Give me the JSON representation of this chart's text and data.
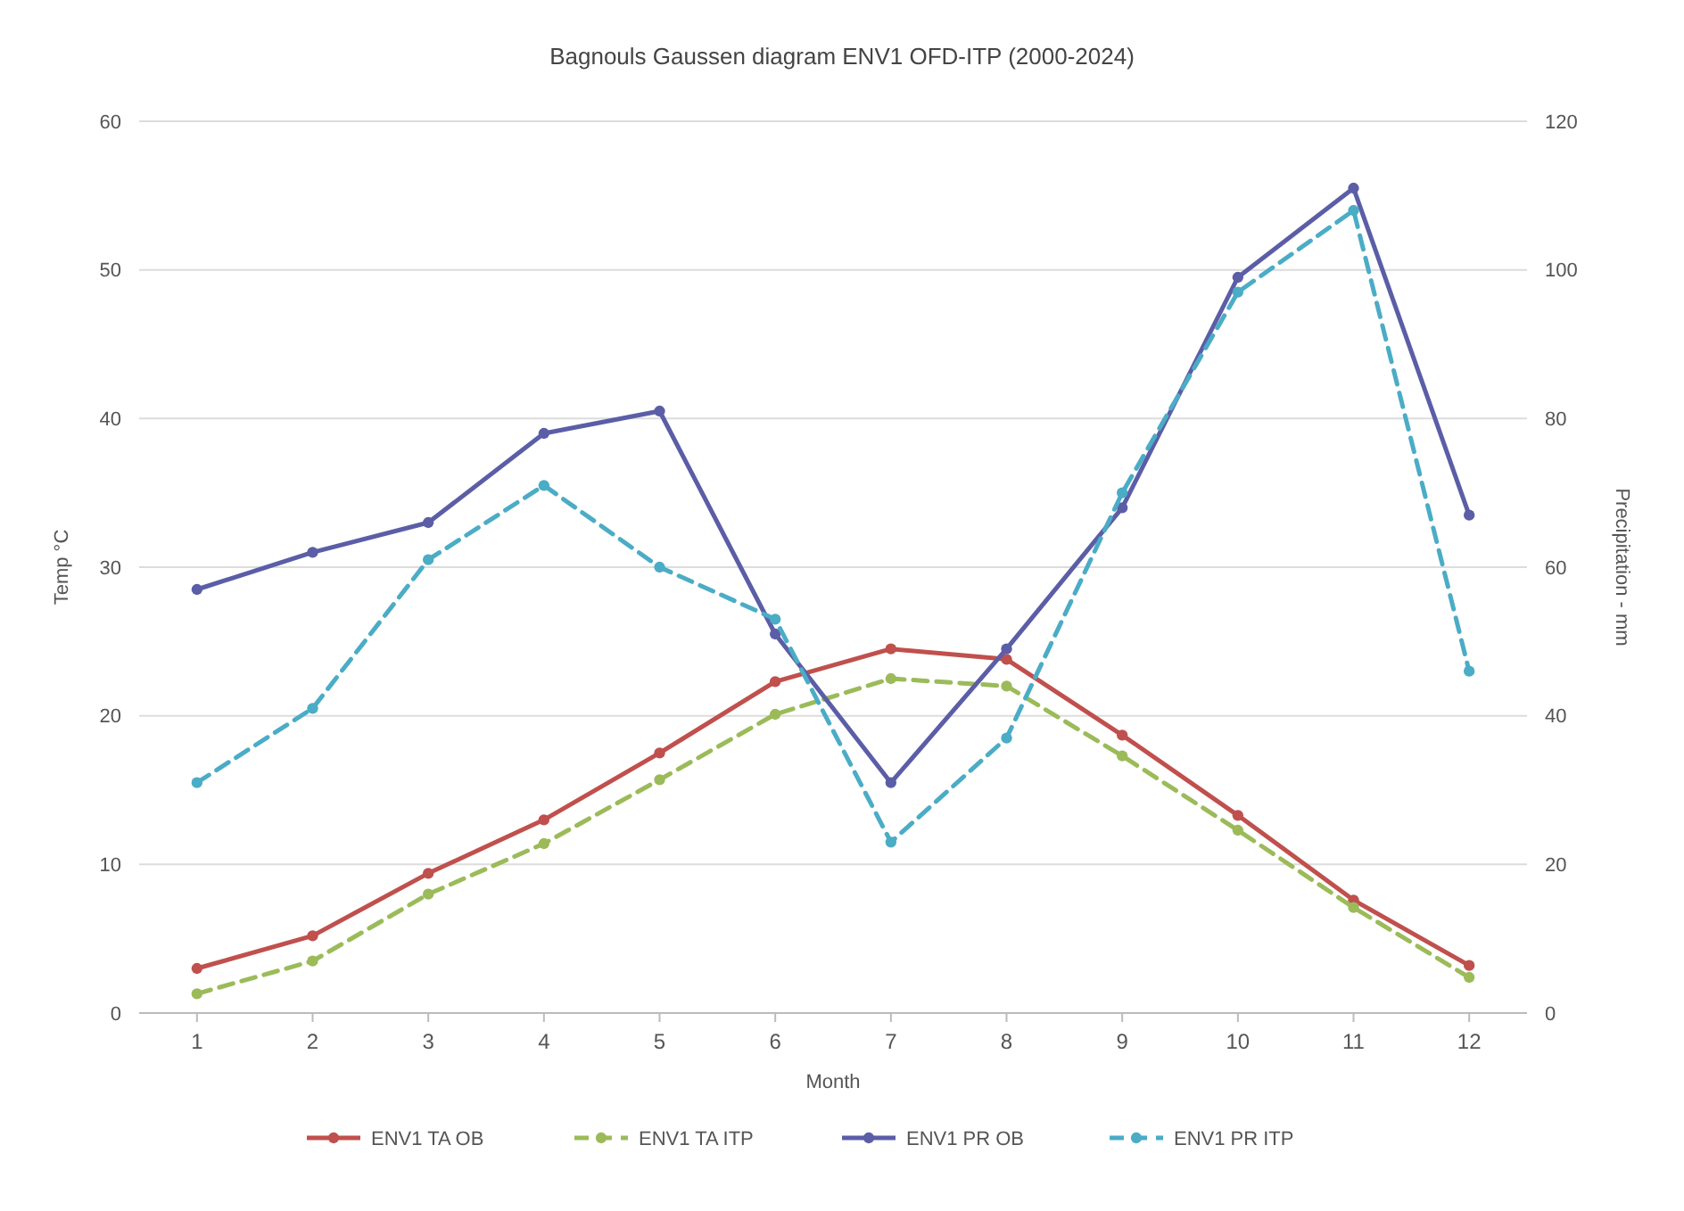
{
  "chart_data": {
    "type": "line",
    "title": "Bagnouls Gaussen diagram ENV1 OFD-ITP (2000-2024)",
    "xlabel": "Month",
    "ylabel": "Temp °C",
    "y2label": "Precipitation - mm",
    "x": [
      1,
      2,
      3,
      4,
      5,
      6,
      7,
      8,
      9,
      10,
      11,
      12
    ],
    "xlim": [
      0.5,
      12.5
    ],
    "xticks": [
      1,
      2,
      3,
      4,
      5,
      6,
      7,
      8,
      9,
      10,
      11,
      12
    ],
    "series": [
      {
        "name": "ENV1 TA OB",
        "color": "#c0504d",
        "line_style": "solid",
        "values": [
          3.0,
          5.2,
          9.4,
          13.0,
          17.5,
          22.3,
          24.5,
          23.8,
          18.7,
          13.3,
          7.6,
          3.2
        ]
      },
      {
        "name": "ENV1 TA ITP",
        "color": "#9bbb59",
        "line_style": "dashed",
        "values": [
          1.3,
          3.5,
          8.0,
          11.4,
          15.7,
          20.1,
          22.5,
          22.0,
          17.3,
          12.3,
          7.1,
          2.4
        ]
      },
      {
        "name": "ENV1 PR OB",
        "color": "#5b5ea6",
        "line_style": "solid",
        "axis": "y2",
        "values": [
          57,
          62,
          66,
          78,
          81,
          51,
          31,
          49,
          68,
          99,
          111,
          67
        ]
      },
      {
        "name": "ENV1 PR ITP",
        "color": "#4bacc6",
        "line_style": "dashed",
        "axis": "y2",
        "values": [
          31,
          41,
          61,
          71,
          60,
          53,
          23,
          37,
          70,
          97,
          108,
          46
        ]
      }
    ],
    "ylim": [
      0,
      60
    ],
    "yticks": [
      0,
      10,
      20,
      30,
      40,
      50,
      60
    ],
    "y2lim": [
      0,
      120
    ],
    "y2ticks": [
      0,
      20,
      40,
      60,
      80,
      100,
      120
    ],
    "grid": "y",
    "legend": "bottom",
    "marker": "circle"
  }
}
